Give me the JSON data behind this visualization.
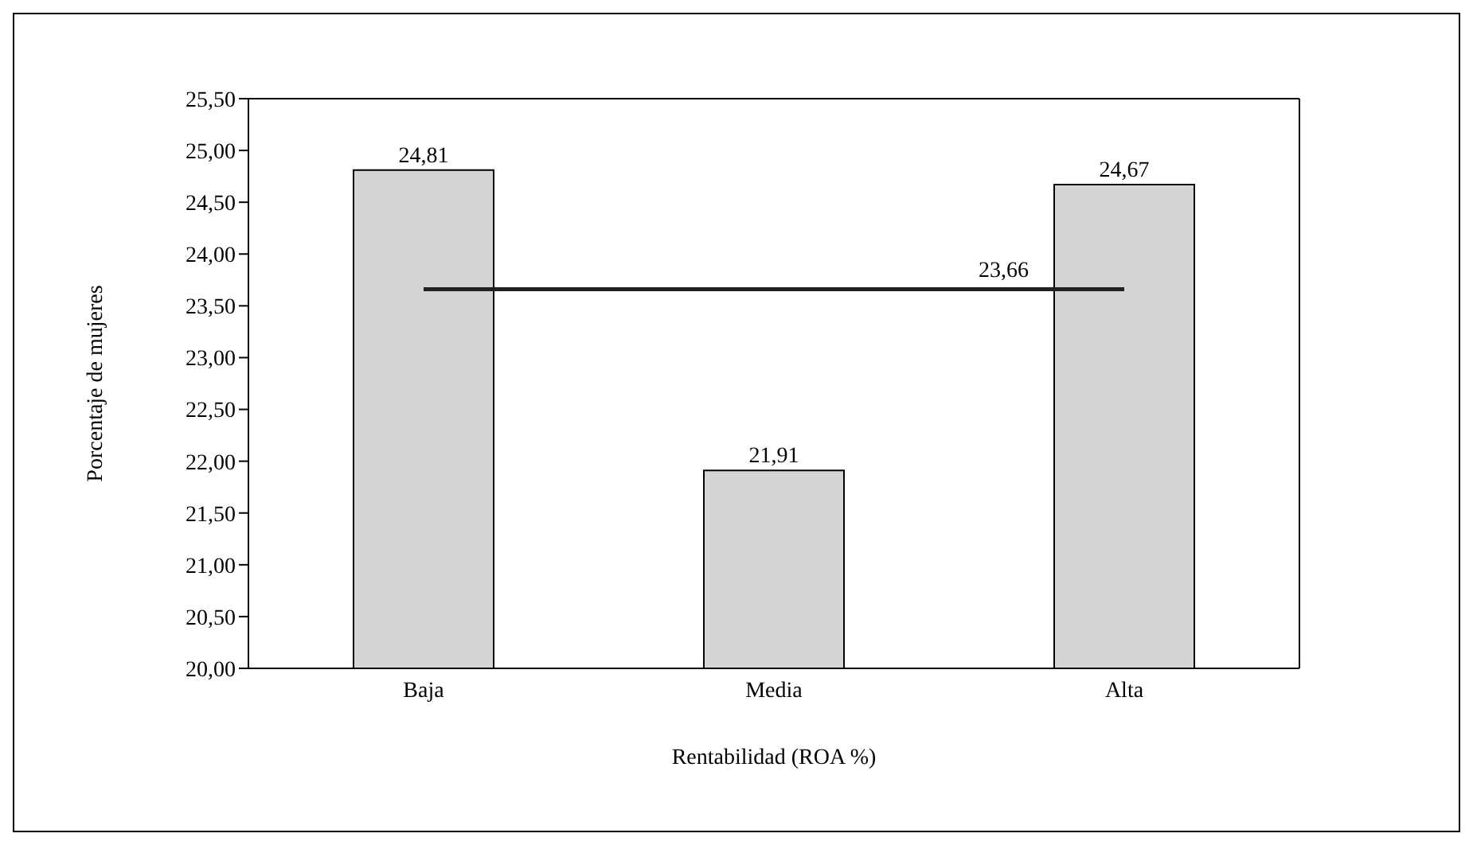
{
  "chart_data": {
    "type": "bar",
    "xlabel": "Rentabilidad (ROA %)",
    "ylabel": "Porcentaje de mujeres",
    "categories": [
      "Baja",
      "Media",
      "Alta"
    ],
    "values": [
      24.81,
      21.91,
      24.67
    ],
    "color": "#d4d4d4",
    "value_labels": [
      "24,81",
      "21,91",
      "24,67"
    ],
    "ylim": [
      20,
      25.5
    ],
    "yticks": [
      {
        "value": 20,
        "label": "20,00"
      },
      {
        "value": 20.5,
        "label": "20,50"
      },
      {
        "value": 21,
        "label": "21,00"
      },
      {
        "value": 21.5,
        "label": "21,50"
      },
      {
        "value": 22,
        "label": "22,00"
      },
      {
        "value": 22.5,
        "label": "22,50"
      },
      {
        "value": 23,
        "label": "23,00"
      },
      {
        "value": 23.5,
        "label": "23,50"
      },
      {
        "value": 24,
        "label": "24,00"
      },
      {
        "value": 24.5,
        "label": "24,50"
      },
      {
        "value": 25,
        "label": "25,00"
      },
      {
        "value": 25.5,
        "label": "25,50"
      }
    ],
    "ref_lines": [
      {
        "axis": "y",
        "value": 23.66,
        "label": "23,66",
        "color": "#222222"
      }
    ],
    "grid": false
  }
}
